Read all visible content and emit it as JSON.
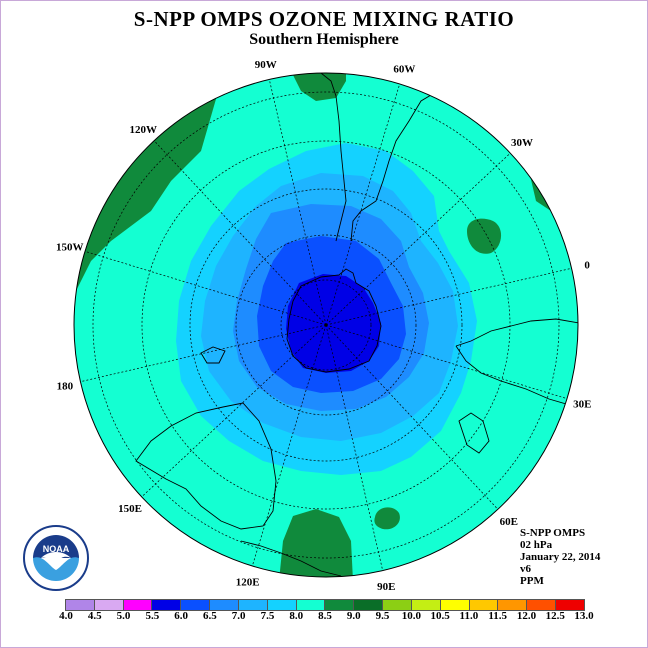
{
  "title": "S-NPP OMPS OZONE MIXING RATIO",
  "subtitle": "Southern Hemisphere",
  "longitude_labels": [
    {
      "text": "90W",
      "lon": -90
    },
    {
      "text": "60W",
      "lon": -60
    },
    {
      "text": "30W",
      "lon": -30
    },
    {
      "text": "0",
      "lon": 0
    },
    {
      "text": "30E",
      "lon": 30
    },
    {
      "text": "60E",
      "lon": 60
    },
    {
      "text": "90E",
      "lon": 90
    },
    {
      "text": "120E",
      "lon": 120
    },
    {
      "text": "150E",
      "lon": 150
    },
    {
      "text": "180",
      "lon": 180
    },
    {
      "text": "150W",
      "lon": -150
    },
    {
      "text": "120W",
      "lon": -120
    }
  ],
  "info": {
    "instrument": "S-NPP OMPS",
    "level": "02 hPa",
    "date": "January 22, 2014",
    "version": "v6",
    "units": "PPM"
  },
  "legend": {
    "ticks": [
      "4.0",
      "4.5",
      "5.0",
      "5.5",
      "6.0",
      "6.5",
      "7.0",
      "7.5",
      "8.0",
      "8.5",
      "9.0",
      "9.5",
      "10.0",
      "10.5",
      "11.0",
      "11.5",
      "12.0",
      "12.5",
      "13.0"
    ],
    "colors": [
      "#b085e8",
      "#d9a9f2",
      "#ff00ff",
      "#0000e6",
      "#0a50ff",
      "#1e8cff",
      "#1eb4ff",
      "#14d2ff",
      "#14ffd2",
      "#108a3c",
      "#0a6e28",
      "#8ccf14",
      "#c4ee14",
      "#ffff00",
      "#ffc800",
      "#ff9600",
      "#ff5000",
      "#ee0000",
      "#8b4a2c"
    ]
  },
  "map": {
    "projection": "polar stereographic, South Pole centered",
    "contour_levels_shown": [
      "5.5",
      "6.0",
      "6.5",
      "7.0",
      "7.5",
      "8.0",
      "8.5"
    ],
    "colors": {
      "background": "#14ffd2",
      "high": "#108a3c",
      "c75": "#14d2ff",
      "c70": "#1eb4ff",
      "c65": "#1e8cff",
      "c60": "#0a50ff",
      "core": "#0000e6"
    }
  },
  "logo": {
    "text": "NOAA",
    "ring_text": "NATIONAL OCEANIC AND ATMOSPHERIC ADMINISTRATION · U.S. DEPARTMENT OF COMMERCE"
  }
}
